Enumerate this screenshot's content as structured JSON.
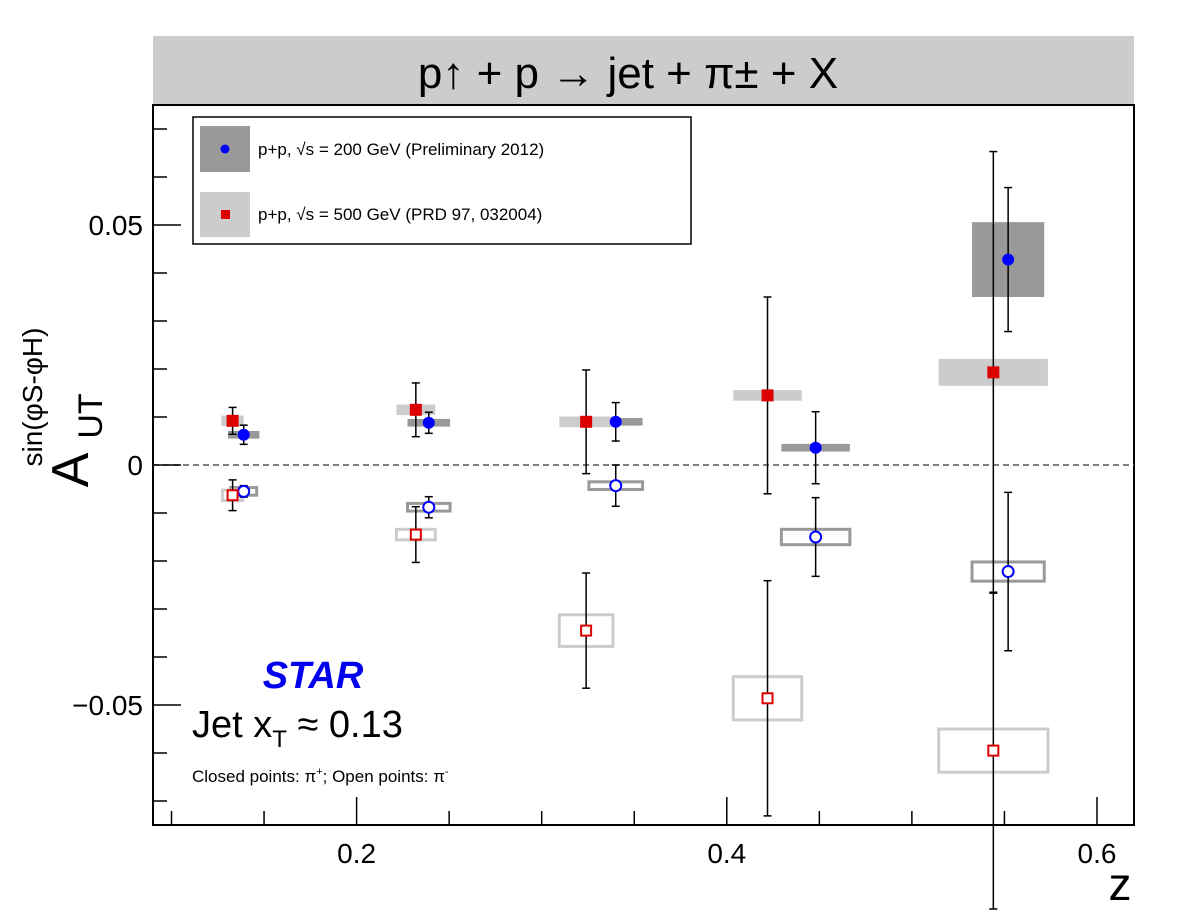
{
  "chart_data": {
    "type": "scatter",
    "title": "p↑ + p → jet + π± + X",
    "xlabel": "z",
    "ylabel": {
      "main": "A",
      "sub": "UT",
      "sup": "sin(φS-φH)"
    },
    "xlim": [
      0.09,
      0.62
    ],
    "ylim": [
      -0.075,
      0.075
    ],
    "xticks": [
      0.2,
      0.4,
      0.6
    ],
    "xtick_labels": [
      "0.2",
      "0.4",
      "0.6"
    ],
    "yticks": [
      -0.05,
      0,
      0.05
    ],
    "ytick_labels": [
      "−0.05",
      "0",
      "0.05"
    ],
    "zero_line": "dashed",
    "grid": false,
    "legend_position": "top-left",
    "legend": [
      {
        "label": "p+p, √s = 200 GeV (Preliminary 2012)",
        "marker": "circle",
        "color": "#0000ff",
        "box_color": "#999999"
      },
      {
        "label": "p+p, √s = 500 GeV (PRD 97, 032004)",
        "marker": "square",
        "color": "#dd0000",
        "box_color": "#cccccc"
      }
    ],
    "series": [
      {
        "name": "p+p, √s = 200 GeV (Preliminary 2012)",
        "charge": "π+",
        "marker": "circle-filled",
        "color": "#0000ff",
        "sys_color": "#999999",
        "sys_style": "filled",
        "points": [
          {
            "x": 0.139,
            "y": 0.0063,
            "err": 0.002,
            "sys_w": 0.017,
            "sys_h": 0.0008
          },
          {
            "x": 0.239,
            "y": 0.0088,
            "err": 0.0022,
            "sys_w": 0.023,
            "sys_h": 0.0008
          },
          {
            "x": 0.34,
            "y": 0.009,
            "err": 0.004,
            "sys_w": 0.029,
            "sys_h": 0.0008
          },
          {
            "x": 0.448,
            "y": 0.0036,
            "err": 0.0075,
            "sys_w": 0.037,
            "sys_h": 0.0008
          },
          {
            "x": 0.552,
            "y": 0.0428,
            "err": 0.015,
            "sys_w": 0.039,
            "sys_h": 0.0078
          }
        ]
      },
      {
        "name": "p+p, √s = 200 GeV (Preliminary 2012)",
        "charge": "π−",
        "marker": "circle-open",
        "color": "#0000ff",
        "sys_color": "#999999",
        "sys_style": "outline",
        "points": [
          {
            "x": 0.139,
            "y": -0.0055,
            "err": 0.0012,
            "sys_w": 0.014,
            "sys_h": 0.0008
          },
          {
            "x": 0.239,
            "y": -0.0088,
            "err": 0.0022,
            "sys_w": 0.023,
            "sys_h": 0.0008
          },
          {
            "x": 0.34,
            "y": -0.0043,
            "err": 0.0043,
            "sys_w": 0.029,
            "sys_h": 0.0008
          },
          {
            "x": 0.448,
            "y": -0.015,
            "err": 0.0082,
            "sys_w": 0.037,
            "sys_h": 0.0016
          },
          {
            "x": 0.552,
            "y": -0.0222,
            "err": 0.0165,
            "sys_w": 0.039,
            "sys_h": 0.002
          }
        ]
      },
      {
        "name": "p+p, √s = 500 GeV (PRD 97, 032004)",
        "charge": "π+",
        "marker": "square-filled",
        "color": "#dd0000",
        "sys_color": "#cccccc",
        "sys_style": "filled",
        "points": [
          {
            "x": 0.133,
            "y": 0.0092,
            "err": 0.0028,
            "sys_w": 0.012,
            "sys_h": 0.0011
          },
          {
            "x": 0.232,
            "y": 0.0115,
            "err": 0.0056,
            "sys_w": 0.021,
            "sys_h": 0.0011
          },
          {
            "x": 0.324,
            "y": 0.009,
            "err": 0.0108,
            "sys_w": 0.029,
            "sys_h": 0.0011
          },
          {
            "x": 0.422,
            "y": 0.0145,
            "err": 0.0205,
            "sys_w": 0.037,
            "sys_h": 0.0011
          },
          {
            "x": 0.544,
            "y": 0.0193,
            "err": 0.046,
            "sys_w": 0.059,
            "sys_h": 0.0028
          }
        ]
      },
      {
        "name": "p+p, √s = 500 GeV (PRD 97, 032004)",
        "charge": "π−",
        "marker": "square-open",
        "color": "#dd0000",
        "sys_color": "#cccccc",
        "sys_style": "outline",
        "points": [
          {
            "x": 0.133,
            "y": -0.0063,
            "err": 0.0032,
            "sys_w": 0.011,
            "sys_h": 0.0011
          },
          {
            "x": 0.232,
            "y": -0.0145,
            "err": 0.0058,
            "sys_w": 0.021,
            "sys_h": 0.0011
          },
          {
            "x": 0.324,
            "y": -0.0345,
            "err": 0.012,
            "sys_w": 0.029,
            "sys_h": 0.0033
          },
          {
            "x": 0.422,
            "y": -0.0486,
            "err": 0.0245,
            "sys_w": 0.037,
            "sys_h": 0.0045
          },
          {
            "x": 0.544,
            "y": -0.0595,
            "err": 0.033,
            "sys_w": 0.059,
            "sys_h": 0.0045
          }
        ]
      }
    ],
    "annotations": {
      "experiment": "STAR",
      "experiment_color": "#0000ee",
      "jet_xt": "Jet x",
      "jet_xt_sub": "T",
      "jet_xt_value": " ≈ 0.13",
      "points_note_1": "Closed points: π",
      "points_note_1_sup": "+",
      "points_note_2": "; Open points: π",
      "points_note_2_sup": "-"
    }
  }
}
